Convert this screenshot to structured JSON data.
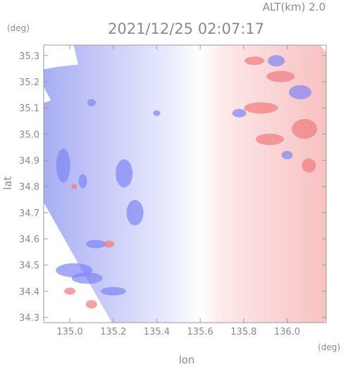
{
  "header": {
    "altitude": "ALT(km) 2.0",
    "timestamp": "2021/12/25 02:07:17"
  },
  "chart_data": {
    "type": "heatmap",
    "title": "2021/12/25 02:07:17",
    "subtitle": "ALT(km) 2.0",
    "xlabel": "lon",
    "ylabel": "lat",
    "x_unit": "(deg)",
    "y_unit": "(deg)",
    "xlim": [
      134.88,
      136.18
    ],
    "ylim": [
      34.28,
      35.34
    ],
    "x_ticks": [
      135.0,
      135.2,
      135.4,
      135.6,
      135.8,
      136.0
    ],
    "x_tick_labels": [
      "135.0",
      "135.2",
      "135.4",
      "135.6",
      "135.8",
      "136.0"
    ],
    "y_ticks": [
      34.3,
      34.4,
      34.5,
      34.6,
      34.7,
      34.8,
      34.9,
      35.0,
      35.1,
      35.2,
      35.3
    ],
    "y_tick_labels": [
      "34.3",
      "34.4",
      "34.5",
      "34.6",
      "34.7",
      "34.8",
      "34.9",
      "35.0",
      "35.1",
      "35.2",
      "35.3"
    ],
    "grid": false,
    "colors": {
      "toward": "#7d86f4",
      "neutral": "#ffffff",
      "away": "#f07a7f",
      "axis": "#8a8a8a"
    }
  }
}
